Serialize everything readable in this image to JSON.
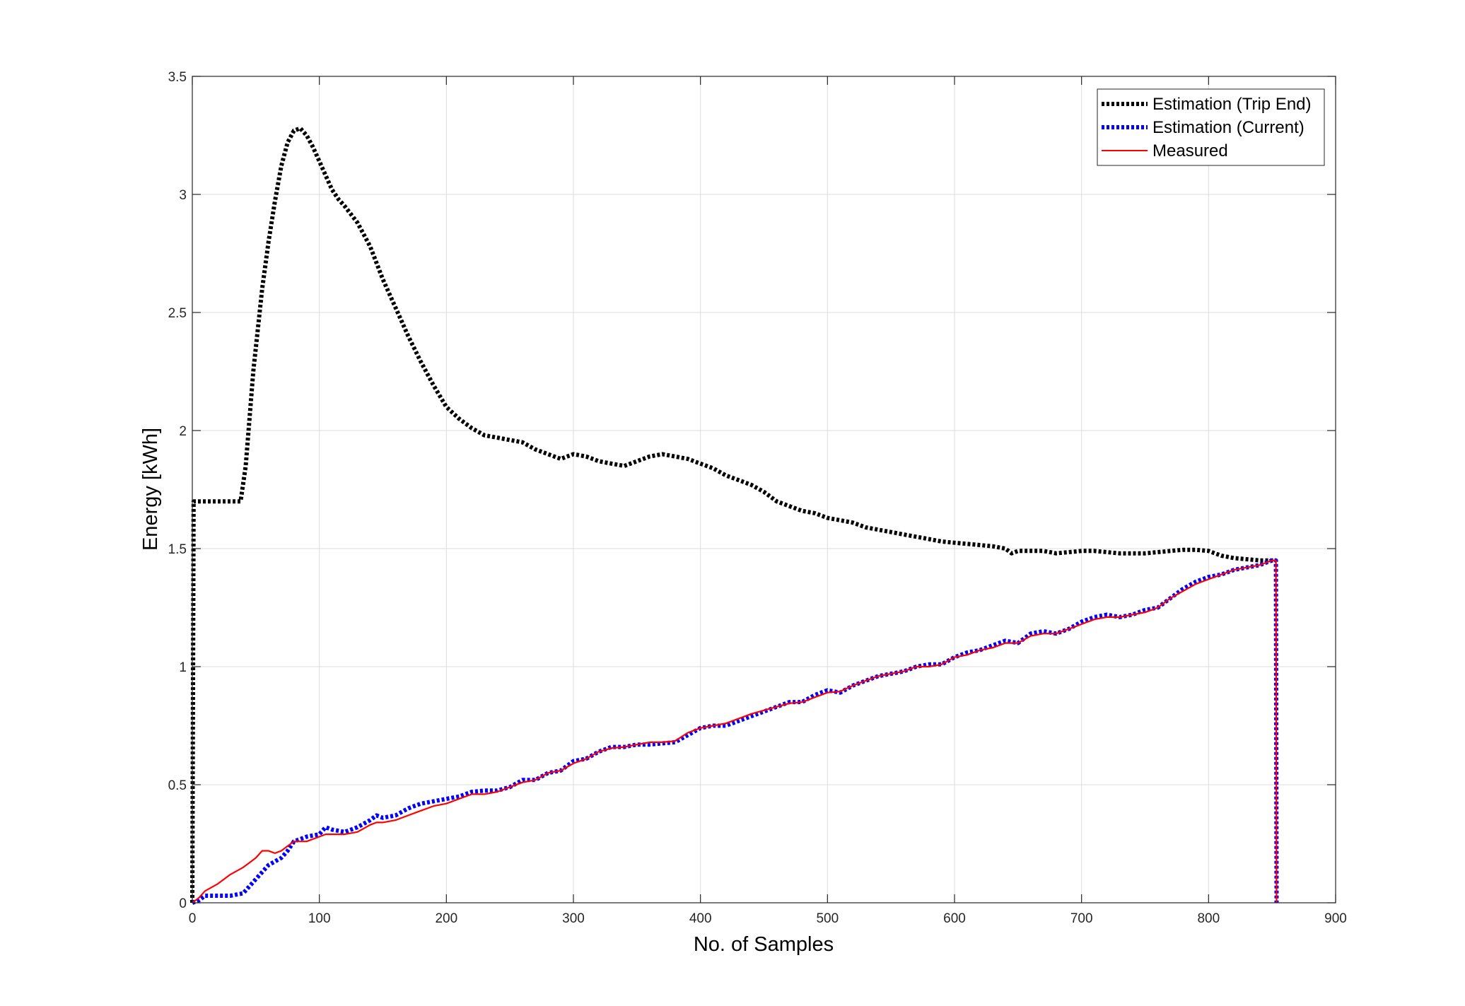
{
  "chart_data": {
    "type": "line",
    "title": "",
    "xlabel": "No. of Samples",
    "ylabel": "Energy [kWh]",
    "xlim": [
      0,
      900
    ],
    "ylim": [
      0,
      3.5
    ],
    "xticks": [
      0,
      100,
      200,
      300,
      400,
      500,
      600,
      700,
      800,
      900
    ],
    "yticks": [
      0,
      0.5,
      1,
      1.5,
      2,
      2.5,
      3,
      3.5
    ],
    "xtick_labels": [
      "0",
      "100",
      "200",
      "300",
      "400",
      "500",
      "600",
      "700",
      "800",
      "900"
    ],
    "ytick_labels": [
      "0",
      "0.5",
      "1",
      "1.5",
      "2",
      "2.5",
      "3",
      "3.5"
    ],
    "grid": true,
    "legend_position": "top-right",
    "series": [
      {
        "name": "Estimation (Trip End)",
        "color": "#000000",
        "line_style": "dotted",
        "x": [
          0,
          1,
          10,
          20,
          30,
          38,
          42,
          45,
          48,
          52,
          55,
          60,
          65,
          70,
          75,
          80,
          85,
          90,
          95,
          100,
          105,
          110,
          115,
          120,
          130,
          140,
          150,
          160,
          170,
          180,
          190,
          200,
          210,
          220,
          230,
          240,
          250,
          260,
          270,
          280,
          290,
          300,
          310,
          320,
          330,
          340,
          350,
          360,
          370,
          380,
          390,
          400,
          410,
          420,
          430,
          440,
          450,
          460,
          470,
          480,
          490,
          500,
          510,
          520,
          530,
          540,
          550,
          560,
          570,
          580,
          590,
          600,
          610,
          620,
          630,
          640,
          645,
          650,
          660,
          670,
          680,
          690,
          700,
          710,
          720,
          730,
          740,
          750,
          760,
          770,
          780,
          790,
          800,
          810,
          820,
          830,
          840,
          850,
          853
        ],
        "y": [
          0,
          1.7,
          1.7,
          1.7,
          1.7,
          1.7,
          1.85,
          2.05,
          2.25,
          2.45,
          2.6,
          2.8,
          2.97,
          3.12,
          3.22,
          3.27,
          3.28,
          3.25,
          3.2,
          3.14,
          3.08,
          3.02,
          2.98,
          2.95,
          2.88,
          2.78,
          2.64,
          2.52,
          2.4,
          2.29,
          2.19,
          2.1,
          2.05,
          2.01,
          1.98,
          1.97,
          1.96,
          1.95,
          1.92,
          1.9,
          1.88,
          1.9,
          1.89,
          1.87,
          1.86,
          1.85,
          1.87,
          1.89,
          1.9,
          1.89,
          1.88,
          1.86,
          1.84,
          1.81,
          1.79,
          1.77,
          1.74,
          1.7,
          1.68,
          1.66,
          1.65,
          1.63,
          1.62,
          1.61,
          1.59,
          1.58,
          1.57,
          1.56,
          1.55,
          1.54,
          1.53,
          1.525,
          1.52,
          1.515,
          1.51,
          1.5,
          1.48,
          1.49,
          1.49,
          1.49,
          1.48,
          1.485,
          1.49,
          1.49,
          1.485,
          1.48,
          1.48,
          1.48,
          1.485,
          1.49,
          1.495,
          1.495,
          1.49,
          1.47,
          1.46,
          1.455,
          1.45,
          1.45,
          1.45
        ]
      },
      {
        "name": "Estimation (Current)",
        "color": "#0000ff",
        "line_style": "dotted",
        "x": [
          0,
          5,
          10,
          20,
          30,
          40,
          45,
          50,
          55,
          60,
          70,
          75,
          80,
          90,
          100,
          105,
          110,
          120,
          130,
          140,
          145,
          150,
          160,
          170,
          180,
          190,
          200,
          210,
          220,
          230,
          240,
          250,
          260,
          270,
          280,
          290,
          300,
          310,
          320,
          330,
          340,
          350,
          360,
          370,
          380,
          390,
          400,
          410,
          420,
          430,
          440,
          450,
          460,
          470,
          480,
          490,
          500,
          510,
          520,
          530,
          540,
          550,
          560,
          570,
          580,
          590,
          600,
          610,
          620,
          630,
          640,
          650,
          660,
          670,
          680,
          690,
          700,
          710,
          720,
          730,
          740,
          750,
          760,
          770,
          780,
          790,
          800,
          810,
          820,
          830,
          840,
          850,
          853,
          853.5
        ],
        "y": [
          0,
          0.01,
          0.03,
          0.03,
          0.03,
          0.04,
          0.07,
          0.1,
          0.13,
          0.16,
          0.19,
          0.22,
          0.26,
          0.28,
          0.29,
          0.32,
          0.31,
          0.3,
          0.32,
          0.35,
          0.37,
          0.36,
          0.37,
          0.4,
          0.42,
          0.43,
          0.44,
          0.45,
          0.47,
          0.475,
          0.475,
          0.49,
          0.52,
          0.52,
          0.55,
          0.56,
          0.6,
          0.61,
          0.64,
          0.66,
          0.66,
          0.67,
          0.67,
          0.675,
          0.68,
          0.71,
          0.74,
          0.75,
          0.75,
          0.77,
          0.79,
          0.81,
          0.83,
          0.85,
          0.85,
          0.88,
          0.9,
          0.89,
          0.92,
          0.94,
          0.96,
          0.97,
          0.98,
          1.0,
          1.01,
          1.01,
          1.04,
          1.06,
          1.07,
          1.09,
          1.11,
          1.1,
          1.14,
          1.15,
          1.14,
          1.16,
          1.19,
          1.21,
          1.22,
          1.21,
          1.22,
          1.24,
          1.25,
          1.29,
          1.33,
          1.36,
          1.38,
          1.39,
          1.41,
          1.42,
          1.43,
          1.45,
          1.45,
          0
        ]
      },
      {
        "name": "Measured",
        "color": "#ff0000",
        "line_style": "solid",
        "x": [
          0,
          5,
          10,
          20,
          30,
          40,
          45,
          50,
          55,
          60,
          65,
          70,
          75,
          80,
          90,
          100,
          105,
          110,
          120,
          130,
          140,
          145,
          150,
          160,
          170,
          180,
          190,
          200,
          210,
          220,
          230,
          240,
          250,
          260,
          270,
          280,
          290,
          300,
          310,
          320,
          330,
          340,
          350,
          360,
          370,
          380,
          390,
          400,
          410,
          420,
          430,
          440,
          450,
          460,
          470,
          480,
          490,
          500,
          510,
          520,
          530,
          540,
          550,
          560,
          570,
          580,
          590,
          600,
          610,
          620,
          630,
          640,
          650,
          660,
          670,
          680,
          690,
          700,
          710,
          720,
          730,
          740,
          750,
          760,
          770,
          780,
          790,
          800,
          810,
          820,
          830,
          840,
          850,
          853,
          853.5
        ],
        "y": [
          0,
          0.02,
          0.05,
          0.08,
          0.12,
          0.15,
          0.17,
          0.19,
          0.22,
          0.22,
          0.21,
          0.22,
          0.24,
          0.26,
          0.26,
          0.28,
          0.29,
          0.29,
          0.29,
          0.3,
          0.33,
          0.34,
          0.34,
          0.35,
          0.37,
          0.39,
          0.41,
          0.42,
          0.44,
          0.46,
          0.46,
          0.47,
          0.49,
          0.51,
          0.52,
          0.55,
          0.56,
          0.59,
          0.61,
          0.64,
          0.655,
          0.66,
          0.67,
          0.68,
          0.68,
          0.685,
          0.72,
          0.74,
          0.75,
          0.76,
          0.78,
          0.8,
          0.815,
          0.83,
          0.845,
          0.85,
          0.87,
          0.89,
          0.895,
          0.92,
          0.94,
          0.96,
          0.97,
          0.98,
          1.0,
          1.0,
          1.01,
          1.04,
          1.05,
          1.07,
          1.08,
          1.1,
          1.1,
          1.13,
          1.14,
          1.14,
          1.16,
          1.18,
          1.2,
          1.21,
          1.21,
          1.22,
          1.23,
          1.25,
          1.29,
          1.32,
          1.35,
          1.37,
          1.39,
          1.41,
          1.42,
          1.43,
          1.45,
          1.45,
          0
        ]
      }
    ]
  }
}
